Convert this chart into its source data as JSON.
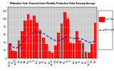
{
  "title": "Milwaukee Solar Powered Home Monthly Production Value Running Average",
  "bar_color": "#ff0000",
  "avg_color": "#0000cc",
  "bg_color": "#ffffff",
  "plot_bg_color": "#cccccc",
  "grid_color": "#ffffff",
  "categories": [
    "Nov'08",
    "Dec",
    "Jan'09",
    "Feb",
    "Mar",
    "Apr",
    "May",
    "Jun",
    "Jul",
    "Aug",
    "Sep",
    "Oct",
    "Nov",
    "Dec",
    "Jan'10",
    "Feb",
    "Mar",
    "Apr",
    "May",
    "Jun",
    "Jul",
    "Aug",
    "Sep",
    "Oct",
    "Nov",
    "Dec",
    "Jan'11",
    "Feb",
    "Mar"
  ],
  "values": [
    38,
    20,
    18,
    45,
    68,
    95,
    112,
    98,
    108,
    90,
    72,
    52,
    36,
    18,
    14,
    32,
    65,
    88,
    118,
    102,
    40,
    38,
    68,
    46,
    40,
    16,
    14,
    36,
    90
  ],
  "running_avg": [
    38,
    29,
    25,
    30,
    38,
    47,
    57,
    62,
    66,
    67,
    65,
    63,
    58,
    53,
    48,
    45,
    45,
    47,
    52,
    55,
    52,
    50,
    51,
    50,
    48,
    44,
    40,
    40,
    44
  ],
  "ylim": [
    0,
    130
  ],
  "yticks": [
    0,
    20,
    40,
    60,
    80,
    100,
    120
  ],
  "bar_width": 0.85,
  "legend_labels": [
    "Prod. Value",
    "Running Avg"
  ],
  "legend_colors": [
    "#ff0000",
    "#0000cc"
  ]
}
